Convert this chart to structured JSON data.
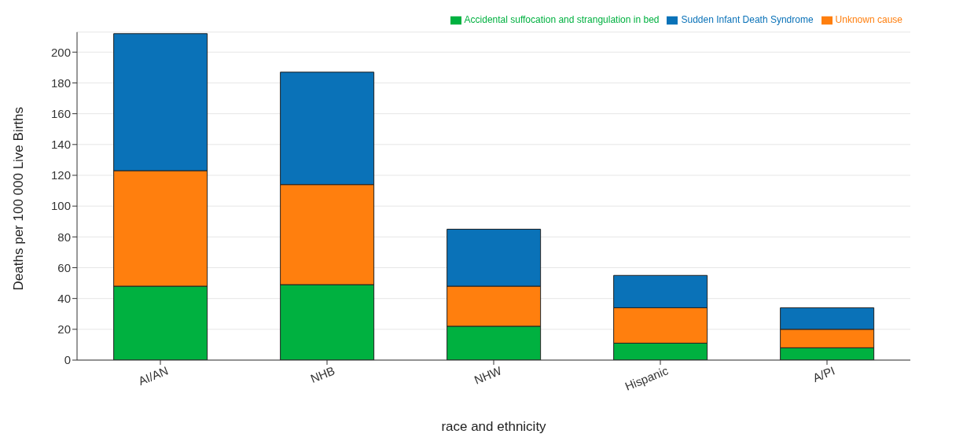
{
  "chart_data": {
    "type": "bar",
    "stacked": true,
    "xlabel": "race and ethnicity",
    "ylabel": "Deaths per 100 000 Live Births",
    "categories": [
      "AI/AN",
      "NHB",
      "NHW",
      "Hispanic",
      "A/PI"
    ],
    "series": [
      {
        "name": "Accidental suffocation and strangulation in bed",
        "color": "#00b140",
        "values": [
          48,
          49,
          22,
          11,
          8
        ]
      },
      {
        "name": "Unknown cause",
        "color": "#ff7f0e",
        "values": [
          75,
          65,
          26,
          23,
          12
        ]
      },
      {
        "name": "Sudden Infant Death Syndrome",
        "color": "#0a72b8",
        "values": [
          89,
          73,
          37,
          21,
          14
        ]
      }
    ],
    "ylim": [
      0,
      213
    ],
    "yticks": [
      0,
      20,
      40,
      60,
      80,
      100,
      120,
      140,
      160,
      180,
      200
    ],
    "grid": "y",
    "legend": "top right"
  }
}
